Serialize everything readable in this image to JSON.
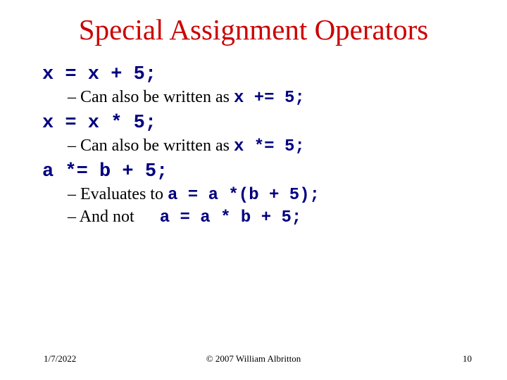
{
  "title": "Special Assignment Operators",
  "items": [
    {
      "code": "x = x + 5;"
    },
    {
      "prefix": "– Can also be written as ",
      "code": "x += 5;"
    },
    {
      "code": "x = x * 5;"
    },
    {
      "prefix": "– Can also be written as ",
      "code": "x *= 5;"
    },
    {
      "code": "a *= b + 5;"
    },
    {
      "prefix": "– Evaluates to ",
      "code": "a = a *(b + 5);"
    },
    {
      "prefix": "– And not      ",
      "code": "a = a * b + 5;"
    }
  ],
  "footer": {
    "date": "1/7/2022",
    "copyright": "© 2007 William Albritton",
    "page": "10"
  },
  "colors": {
    "title": "#cc0000",
    "code": "#000080",
    "background": "#ffffff",
    "text": "#000000"
  }
}
